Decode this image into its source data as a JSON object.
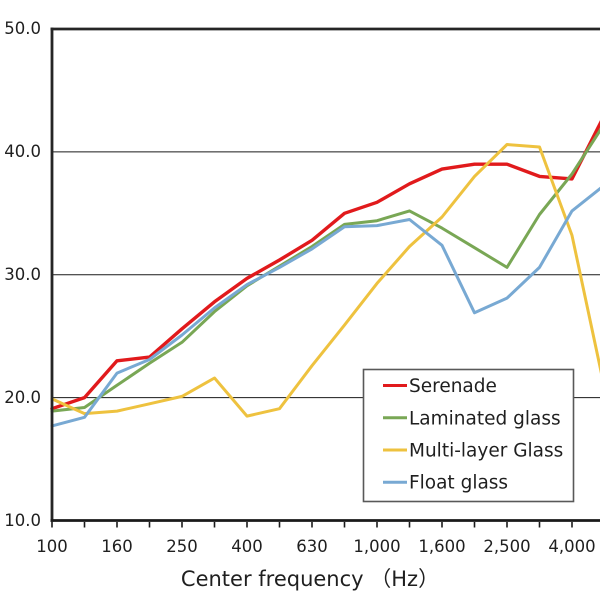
{
  "chart_data": {
    "type": "line",
    "xlabel": "Center frequency （Hz）",
    "ylim": [
      10,
      50
    ],
    "y_tick_labels": [
      "10.0",
      "20.0",
      "30.0",
      "40.0",
      "50.0"
    ],
    "grid": "horizontal gridlines at 20.0, 30.0, 40.0; heavy border top/left/bottom",
    "legend_position": "inside bottom-right",
    "x_categories": [
      "100",
      "125",
      "160",
      "200",
      "250",
      "315",
      "400",
      "500",
      "630",
      "800",
      "1,000",
      "1,250",
      "1,600",
      "2,000",
      "2,500",
      "3,150",
      "4,000",
      "5,000"
    ],
    "x_tick_labels_shown": [
      "100",
      "160",
      "250",
      "400",
      "630",
      "1,000",
      "1,600",
      "2,500",
      "4,000"
    ],
    "series": [
      {
        "name": "Serenade",
        "color": "#e11a1c",
        "values": [
          19.1,
          20.0,
          23.0,
          23.3,
          25.6,
          27.8,
          29.7,
          31.2,
          32.8,
          35.0,
          35.9,
          37.4,
          38.6,
          39.0,
          39.0,
          38.0,
          37.8,
          43.0
        ]
      },
      {
        "name": "Laminated glass",
        "color": "#79a755",
        "values": [
          18.9,
          19.2,
          21.0,
          22.8,
          24.5,
          27.0,
          29.1,
          30.7,
          32.3,
          34.1,
          34.4,
          35.2,
          33.8,
          32.2,
          30.6,
          34.9,
          38.2,
          42.3
        ]
      },
      {
        "name": "Multi-layer Glass",
        "color": "#eec23f",
        "values": [
          19.9,
          18.7,
          18.9,
          19.5,
          20.1,
          21.6,
          18.5,
          19.1,
          22.6,
          25.9,
          29.3,
          32.3,
          34.7,
          38.0,
          40.6,
          40.4,
          33.2,
          20.8
        ]
      },
      {
        "name": "Float glass",
        "color": "#78a9d3",
        "values": [
          17.7,
          18.4,
          22.0,
          23.1,
          25.1,
          27.3,
          29.2,
          30.6,
          32.1,
          33.9,
          34.0,
          34.5,
          32.4,
          26.9,
          28.1,
          30.6,
          35.2,
          37.3
        ]
      }
    ]
  }
}
